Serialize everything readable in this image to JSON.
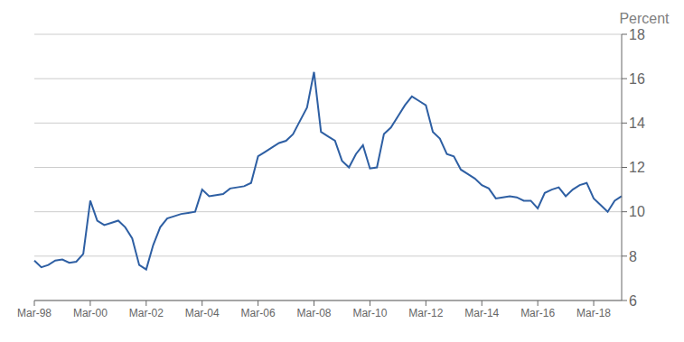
{
  "chart_data": {
    "type": "line",
    "ylabel": "Percent",
    "color": "#2E5FA3",
    "ylim": [
      6,
      18
    ],
    "yticks": [
      6,
      8,
      10,
      12,
      14,
      16,
      18
    ],
    "grid": true,
    "categories": [
      "Mar-98",
      null,
      null,
      null,
      null,
      null,
      null,
      null,
      "Mar-00",
      null,
      null,
      null,
      null,
      null,
      null,
      null,
      "Mar-02",
      null,
      null,
      null,
      null,
      null,
      null,
      null,
      "Mar-04",
      null,
      null,
      null,
      null,
      null,
      null,
      null,
      "Mar-06",
      null,
      null,
      null,
      null,
      null,
      null,
      null,
      "Mar-08",
      null,
      null,
      null,
      null,
      null,
      null,
      null,
      "Mar-10",
      null,
      null,
      null,
      null,
      null,
      null,
      null,
      "Mar-12",
      null,
      null,
      null,
      null,
      null,
      null,
      null,
      "Mar-14",
      null,
      null,
      null,
      null,
      null,
      null,
      null,
      "Mar-16",
      null,
      null,
      null,
      null,
      null,
      null,
      null,
      "Mar-18",
      null,
      null,
      null,
      null
    ],
    "values": [
      7.8,
      7.5,
      7.6,
      7.8,
      7.85,
      7.7,
      7.75,
      8.1,
      10.5,
      9.6,
      9.4,
      9.5,
      9.6,
      9.3,
      8.8,
      7.6,
      7.4,
      8.5,
      9.3,
      9.7,
      9.8,
      9.9,
      9.95,
      10.0,
      11.0,
      10.7,
      10.75,
      10.8,
      11.05,
      11.1,
      11.15,
      11.3,
      12.5,
      12.7,
      12.9,
      13.1,
      13.2,
      13.5,
      14.1,
      14.7,
      16.3,
      13.6,
      13.4,
      13.2,
      12.3,
      12.0,
      12.6,
      13.0,
      11.95,
      12.0,
      13.5,
      13.8,
      14.3,
      14.8,
      15.2,
      15.0,
      14.8,
      13.6,
      13.3,
      12.6,
      12.5,
      11.9,
      11.7,
      11.5,
      11.2,
      11.05,
      10.6,
      10.65,
      10.7,
      10.65,
      10.5,
      10.5,
      10.15,
      10.85,
      11.0,
      11.1,
      10.7,
      11.0,
      11.2,
      11.3,
      10.6,
      10.3,
      10.0,
      10.5,
      10.7
    ]
  }
}
